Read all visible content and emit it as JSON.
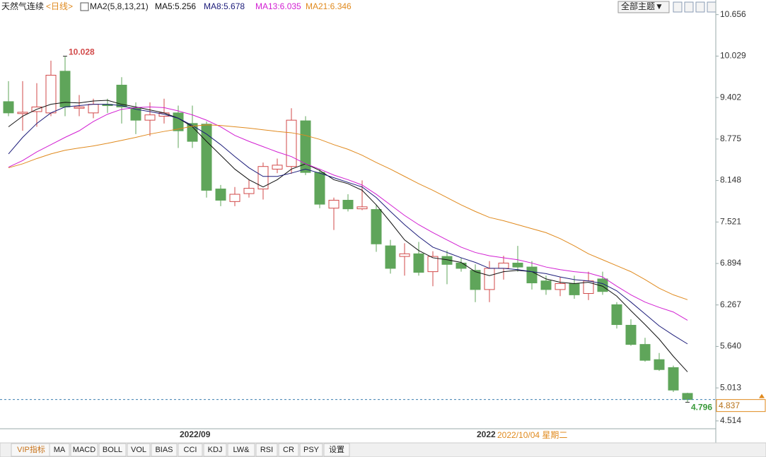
{
  "chart_data": {
    "type": "candlestick",
    "title": "天然气连续",
    "period": "<日线>",
    "indicator": "MA2(5,8,13,21)",
    "categories": [
      null,
      null,
      null,
      null,
      null,
      null,
      null,
      null,
      null,
      null,
      null,
      null,
      null,
      "2022/09",
      null,
      null,
      null,
      null,
      null,
      null,
      null,
      null,
      null,
      null,
      null,
      null,
      null,
      null,
      null,
      null,
      null,
      null,
      null,
      null,
      "2022",
      null,
      null,
      null,
      null,
      null,
      null,
      null,
      null,
      null,
      null,
      null,
      null,
      null,
      null
    ],
    "crosshair_date": "2022/10/04 星期二",
    "open": [
      9.34,
      9.16,
      9.19,
      9.17,
      9.8,
      9.24,
      9.17,
      9.3,
      9.59,
      9.25,
      9.06,
      9.12,
      9.17,
      9.01,
      9.0,
      8.02,
      7.83,
      7.95,
      8.02,
      8.32,
      8.36,
      9.05,
      8.27,
      7.73,
      7.85,
      7.72,
      7.71,
      7.16,
      7.0,
      7.04,
      6.77,
      7.0,
      6.9,
      6.79,
      6.5,
      6.82,
      6.9,
      6.84,
      6.63,
      6.5,
      6.59,
      6.44,
      6.66,
      6.27,
      5.96,
      5.67,
      5.44,
      5.32,
      4.93
    ],
    "high": [
      9.65,
      9.65,
      9.62,
      9.96,
      10.028,
      9.44,
      9.385,
      9.385,
      9.71,
      9.33,
      9.33,
      9.385,
      9.28,
      9.28,
      9.04,
      8.08,
      8.05,
      8.16,
      8.42,
      8.48,
      9.24,
      9.12,
      8.32,
      7.89,
      7.94,
      8.15,
      7.78,
      7.25,
      7.2,
      7.22,
      7.08,
      7.09,
      6.98,
      6.88,
      6.93,
      7.01,
      7.16,
      6.93,
      6.71,
      6.69,
      6.71,
      6.77,
      6.77,
      6.31,
      6.05,
      5.77,
      5.54,
      5.35,
      4.94
    ],
    "low": [
      9.12,
      8.9,
      8.96,
      9.12,
      9.12,
      9.12,
      9.09,
      9.17,
      9.01,
      8.85,
      8.82,
      9.01,
      8.64,
      8.64,
      7.89,
      7.76,
      7.76,
      7.89,
      7.86,
      8.26,
      8.25,
      8.23,
      7.73,
      7.4,
      7.68,
      7.7,
      7.07,
      6.74,
      6.71,
      6.71,
      6.55,
      6.58,
      6.77,
      6.31,
      6.31,
      6.65,
      6.77,
      6.5,
      6.42,
      6.4,
      6.36,
      6.34,
      6.42,
      5.91,
      5.65,
      5.41,
      5.27,
      4.95,
      4.796
    ],
    "close": [
      9.17,
      9.18,
      9.26,
      9.74,
      9.26,
      9.26,
      9.3,
      9.28,
      9.26,
      9.06,
      9.14,
      9.17,
      8.9,
      8.74,
      8.0,
      7.85,
      7.94,
      8.03,
      8.36,
      8.38,
      9.06,
      8.27,
      7.79,
      7.85,
      7.72,
      7.75,
      7.19,
      6.82,
      7.04,
      6.76,
      7.0,
      6.88,
      6.82,
      6.5,
      6.82,
      6.9,
      6.84,
      6.6,
      6.5,
      6.59,
      6.42,
      6.63,
      6.47,
      5.97,
      5.67,
      5.43,
      5.29,
      4.98,
      4.837
    ],
    "up_color": "#d24a4a",
    "down_color": "#5fa55a",
    "series": [
      {
        "name": "MA5:5.256",
        "color": "#111111",
        "values": [
          8.96,
          9.12,
          9.225,
          9.3,
          9.33,
          9.32,
          9.35,
          9.36,
          9.3,
          9.26,
          9.215,
          9.17,
          9.09,
          8.96,
          8.74,
          8.53,
          8.32,
          8.16,
          8.05,
          8.16,
          8.32,
          8.4,
          8.3,
          8.16,
          8.1,
          8.0,
          7.78,
          7.52,
          7.25,
          7.09,
          6.98,
          6.95,
          6.91,
          6.77,
          6.71,
          6.77,
          6.79,
          6.77,
          6.66,
          6.61,
          6.59,
          6.61,
          6.55,
          6.4,
          6.18,
          5.97,
          5.75,
          5.49,
          5.256
        ]
      },
      {
        "name": "MA8:5.678",
        "color": "#1c1c7a",
        "values": [
          8.55,
          8.8,
          9.01,
          9.17,
          9.26,
          9.28,
          9.3,
          9.3,
          9.28,
          9.225,
          9.19,
          9.15,
          9.09,
          8.98,
          8.85,
          8.69,
          8.51,
          8.34,
          8.21,
          8.21,
          8.26,
          8.32,
          8.26,
          8.19,
          8.12,
          8.05,
          7.89,
          7.68,
          7.48,
          7.3,
          7.14,
          7.06,
          6.98,
          6.91,
          6.82,
          6.82,
          6.8,
          6.77,
          6.74,
          6.69,
          6.65,
          6.63,
          6.59,
          6.48,
          6.31,
          6.13,
          5.95,
          5.81,
          5.678
        ]
      },
      {
        "name": "MA13:6.035",
        "color": "#d21fd2",
        "values": [
          8.35,
          8.45,
          8.58,
          8.69,
          8.8,
          8.9,
          9.04,
          9.15,
          9.225,
          9.25,
          9.26,
          9.25,
          9.2,
          9.14,
          9.06,
          8.96,
          8.83,
          8.74,
          8.66,
          8.58,
          8.51,
          8.4,
          8.32,
          8.23,
          8.16,
          8.08,
          7.94,
          7.78,
          7.62,
          7.48,
          7.36,
          7.25,
          7.14,
          7.06,
          7.01,
          6.98,
          6.95,
          6.9,
          6.84,
          6.8,
          6.77,
          6.75,
          6.69,
          6.55,
          6.42,
          6.31,
          6.23,
          6.16,
          6.035
        ]
      },
      {
        "name": "MA21:6.346",
        "color": "#e08a1e",
        "values": [
          8.34,
          8.4,
          8.48,
          8.55,
          8.605,
          8.64,
          8.67,
          8.71,
          8.755,
          8.8,
          8.85,
          8.89,
          8.925,
          8.97,
          8.99,
          8.98,
          8.96,
          8.94,
          8.915,
          8.89,
          8.87,
          8.83,
          8.77,
          8.69,
          8.62,
          8.53,
          8.42,
          8.32,
          8.21,
          8.1,
          8.0,
          7.89,
          7.78,
          7.68,
          7.59,
          7.54,
          7.48,
          7.42,
          7.36,
          7.27,
          7.16,
          7.04,
          6.95,
          6.86,
          6.77,
          6.65,
          6.52,
          6.42,
          6.346
        ]
      }
    ],
    "ylim": [
      4.31,
      10.77
    ],
    "yticks": [
      10.656,
      10.029,
      9.402,
      8.775,
      8.148,
      7.521,
      6.894,
      6.267,
      {
        "value": 5.64,
        "label": "5.640"
      },
      5.013,
      4.514
    ]
  },
  "toolbar": {
    "theme_button": "全部主题▼",
    "tabs": [
      "VIP指标",
      "MA",
      "MACD",
      "BOLL",
      "VOL",
      "BIAS",
      "CCI",
      "KDJ",
      "LW&",
      "RSI",
      "CR",
      "PSY",
      "设置"
    ]
  }
}
